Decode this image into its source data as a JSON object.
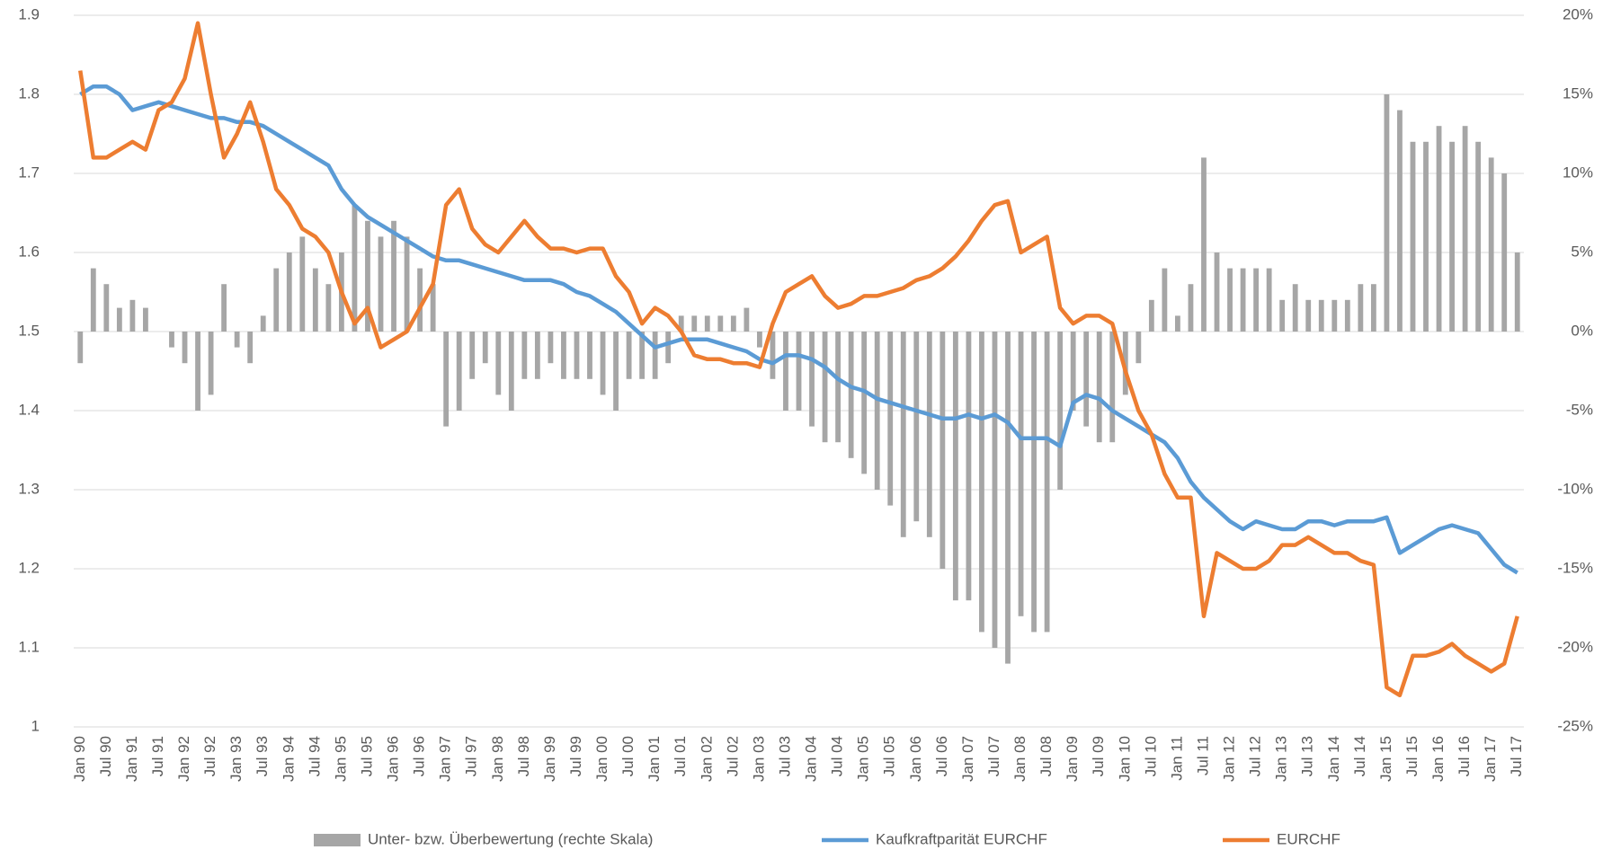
{
  "chart_data": {
    "type": "combo",
    "categories": [
      "Jan 90",
      null,
      "Jul 90",
      null,
      "Jan 91",
      null,
      "Jul 91",
      null,
      "Jan 92",
      null,
      "Jul 92",
      null,
      "Jan 93",
      null,
      "Jul 93",
      null,
      "Jan 94",
      null,
      "Jul 94",
      null,
      "Jan 95",
      null,
      "Jul 95",
      null,
      "Jan 96",
      null,
      "Jul 96",
      null,
      "Jan 97",
      null,
      "Jul 97",
      null,
      "Jan 98",
      null,
      "Jul 98",
      null,
      "Jan 99",
      null,
      "Jul 99",
      null,
      "Jan 00",
      null,
      "Jul 00",
      null,
      "Jan 01",
      null,
      "Jul 01",
      null,
      "Jan 02",
      null,
      "Jul 02",
      null,
      "Jan 03",
      null,
      "Jul 03",
      null,
      "Jan 04",
      null,
      "Jul 04",
      null,
      "Jan 05",
      null,
      "Jul 05",
      null,
      "Jan 06",
      null,
      "Jul 06",
      null,
      "Jan 07",
      null,
      "Jul 07",
      null,
      "Jan 08",
      null,
      "Jul 08",
      null,
      "Jan 09",
      null,
      "Jul 09",
      null,
      "Jan 10",
      null,
      "Jul 10",
      null,
      "Jan 11",
      null,
      "Jul 11",
      null,
      "Jan 12",
      null,
      "Jul 12",
      null,
      "Jan 13",
      null,
      "Jul 13",
      null,
      "Jan 14",
      null,
      "Jul 14",
      null,
      "Jan 15",
      null,
      "Jul 15",
      null,
      "Jan 16",
      null,
      "Jul 16",
      null,
      "Jan 17",
      null,
      "Jul 17"
    ],
    "series": [
      {
        "name": "Unter- bzw. Überbewertung (rechte Skala)",
        "type": "bar",
        "axis": "y2",
        "color": "#a6a6a6",
        "values": [
          -2,
          4,
          3,
          1.5,
          2,
          1.5,
          0,
          -1,
          -2,
          -5,
          -4,
          3,
          -1,
          -2,
          1,
          4,
          5,
          6,
          4,
          3,
          5,
          8,
          7,
          6,
          7,
          6,
          4,
          3,
          -6,
          -5,
          -3,
          -2,
          -4,
          -5,
          -3,
          -3,
          -2,
          -3,
          -3,
          -3,
          -4,
          -5,
          -3,
          -3,
          -3,
          -2,
          1,
          1,
          1,
          1,
          1,
          1.5,
          -1,
          -3,
          -5,
          -5,
          -6,
          -7,
          -7,
          -8,
          -9,
          -10,
          -11,
          -13,
          -12,
          -13,
          -15,
          -17,
          -17,
          -19,
          -20,
          -21,
          -18,
          -19,
          -19,
          -10,
          -5,
          -6,
          -7,
          -7,
          -4,
          -2,
          2,
          4,
          1,
          3,
          11,
          5,
          4,
          4,
          4,
          4,
          2,
          3,
          2,
          2,
          2,
          2,
          3,
          3,
          15,
          14,
          12,
          12,
          13,
          12,
          13,
          12,
          11,
          10,
          5
        ]
      },
      {
        "name": "Kaufkraftparität EURCHF",
        "type": "line",
        "color": "#5b9bd5",
        "values": [
          1.8,
          1.81,
          1.81,
          1.8,
          1.78,
          1.785,
          1.79,
          1.785,
          1.78,
          1.775,
          1.77,
          1.77,
          1.765,
          1.765,
          1.76,
          1.75,
          1.74,
          1.73,
          1.72,
          1.71,
          1.68,
          1.66,
          1.645,
          1.635,
          1.625,
          1.615,
          1.605,
          1.595,
          1.59,
          1.59,
          1.585,
          1.58,
          1.575,
          1.57,
          1.565,
          1.565,
          1.565,
          1.56,
          1.55,
          1.545,
          1.535,
          1.525,
          1.51,
          1.495,
          1.48,
          1.485,
          1.49,
          1.49,
          1.49,
          1.485,
          1.48,
          1.475,
          1.465,
          1.46,
          1.47,
          1.47,
          1.465,
          1.455,
          1.44,
          1.43,
          1.425,
          1.415,
          1.41,
          1.405,
          1.4,
          1.395,
          1.39,
          1.39,
          1.395,
          1.39,
          1.395,
          1.385,
          1.365,
          1.365,
          1.365,
          1.355,
          1.41,
          1.42,
          1.415,
          1.4,
          1.39,
          1.38,
          1.37,
          1.36,
          1.34,
          1.31,
          1.29,
          1.275,
          1.26,
          1.25,
          1.26,
          1.255,
          1.25,
          1.25,
          1.26,
          1.26,
          1.255,
          1.26,
          1.26,
          1.26,
          1.265,
          1.22,
          1.23,
          1.24,
          1.25,
          1.255,
          1.25,
          1.245,
          1.225,
          1.205,
          1.195
        ]
      },
      {
        "name": "EURCHF",
        "type": "line",
        "color": "#ed7d31",
        "values": [
          1.83,
          1.72,
          1.72,
          1.73,
          1.74,
          1.73,
          1.78,
          1.79,
          1.82,
          1.89,
          1.8,
          1.72,
          1.75,
          1.79,
          1.74,
          1.68,
          1.66,
          1.63,
          1.62,
          1.6,
          1.55,
          1.51,
          1.53,
          1.48,
          1.49,
          1.5,
          1.53,
          1.56,
          1.66,
          1.68,
          1.63,
          1.61,
          1.6,
          1.62,
          1.64,
          1.62,
          1.605,
          1.605,
          1.6,
          1.605,
          1.605,
          1.57,
          1.55,
          1.51,
          1.53,
          1.52,
          1.5,
          1.47,
          1.465,
          1.465,
          1.46,
          1.46,
          1.455,
          1.51,
          1.55,
          1.56,
          1.57,
          1.545,
          1.53,
          1.535,
          1.545,
          1.545,
          1.55,
          1.555,
          1.565,
          1.57,
          1.58,
          1.595,
          1.615,
          1.64,
          1.66,
          1.665,
          1.6,
          1.61,
          1.62,
          1.53,
          1.51,
          1.52,
          1.52,
          1.51,
          1.45,
          1.4,
          1.37,
          1.32,
          1.29,
          1.29,
          1.14,
          1.22,
          1.21,
          1.2,
          1.2,
          1.21,
          1.23,
          1.23,
          1.24,
          1.23,
          1.22,
          1.22,
          1.21,
          1.205,
          1.05,
          1.04,
          1.09,
          1.09,
          1.095,
          1.105,
          1.09,
          1.08,
          1.07,
          1.08,
          1.14
        ]
      }
    ],
    "ylim": [
      1,
      1.9
    ],
    "yticks": [
      1,
      1.1,
      1.2,
      1.3,
      1.4,
      1.5,
      1.6,
      1.7,
      1.8,
      1.9
    ],
    "y2lim": [
      -25,
      20
    ],
    "y2ticks": [
      {
        "value": -25,
        "label": "-25%"
      },
      {
        "value": -20,
        "label": "-20%"
      },
      {
        "value": -15,
        "label": "-15%"
      },
      {
        "value": -10,
        "label": "-10%"
      },
      {
        "value": -5,
        "label": "-5%"
      },
      {
        "value": 0,
        "label": "0%"
      },
      {
        "value": 5,
        "label": "5%"
      },
      {
        "value": 10,
        "label": "10%"
      },
      {
        "value": 15,
        "label": "15%"
      },
      {
        "value": 20,
        "label": "20%"
      }
    ],
    "grid": true,
    "legend": "bottom"
  }
}
